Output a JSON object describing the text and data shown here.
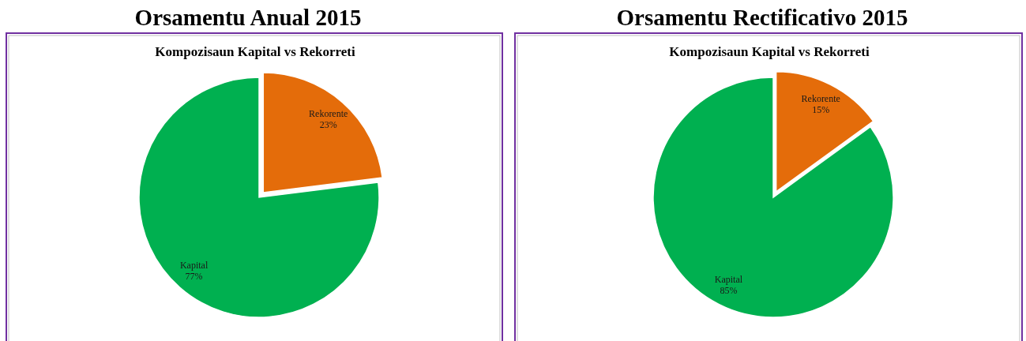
{
  "chart_data": [
    {
      "type": "pie",
      "title": "Orsamentu Anual 2015",
      "subtitle": "Kompozisaun Kapital vs Rekorreti",
      "categories": [
        "Rekorente",
        "Kapital"
      ],
      "values": [
        23,
        77
      ],
      "colors": [
        "#e46c0a",
        "#00b050"
      ],
      "value_labels": [
        "23%",
        "77%"
      ]
    },
    {
      "type": "pie",
      "title": "Orsamentu Rectificativo 2015",
      "subtitle": "Kompozisaun Kapital vs Rekorreti",
      "categories": [
        "Rekorente",
        "Kapital"
      ],
      "values": [
        15,
        85
      ],
      "colors": [
        "#e46c0a",
        "#00b050"
      ],
      "value_labels": [
        "15%",
        "85%"
      ]
    }
  ]
}
